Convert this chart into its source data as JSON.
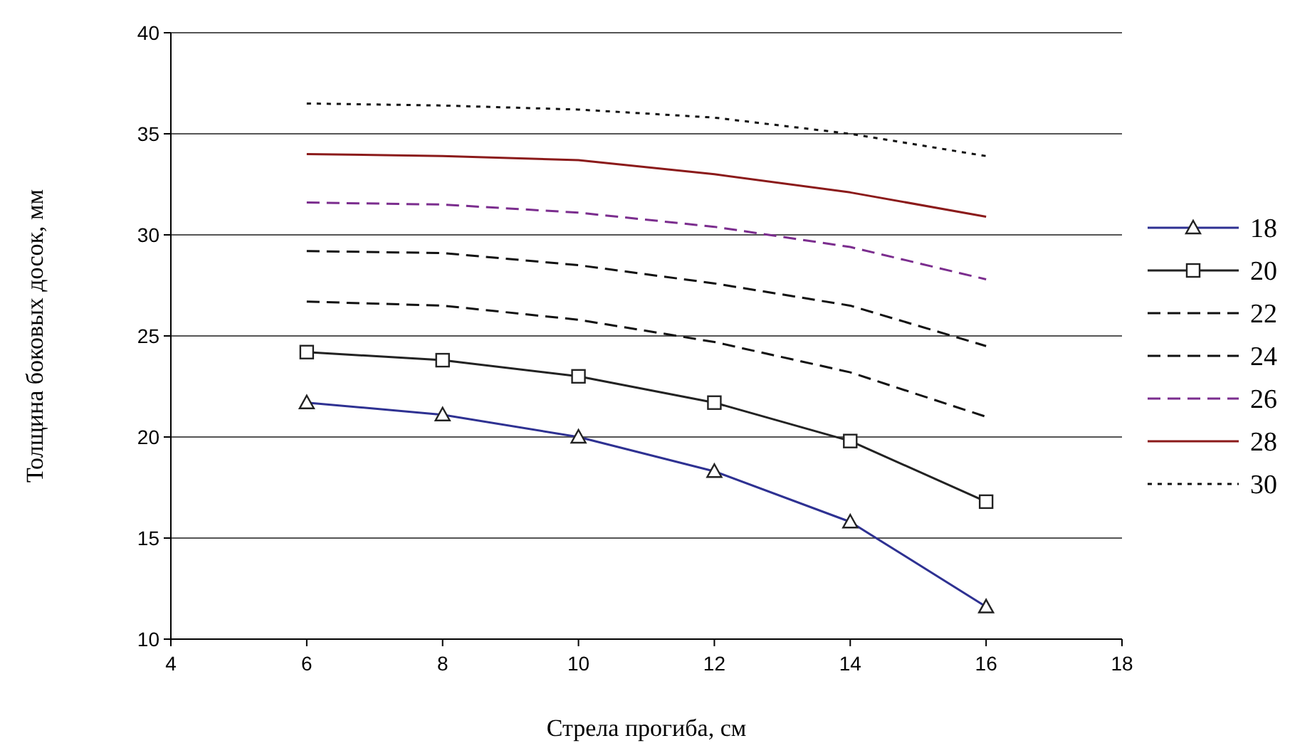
{
  "chart_data": {
    "type": "line",
    "xlabel": "Стрела прогиба, см",
    "ylabel": "Толщина боковых досок, мм",
    "x": [
      6,
      8,
      10,
      12,
      14,
      16
    ],
    "xlim": [
      4,
      18
    ],
    "xticks": [
      4,
      6,
      8,
      10,
      12,
      14,
      16,
      18
    ],
    "ylim": [
      10,
      40
    ],
    "yticks": [
      10,
      15,
      20,
      25,
      30,
      35,
      40
    ],
    "grid": "y",
    "legend": "right",
    "series": [
      {
        "name": "18",
        "color": "#2e3192",
        "marker": "triangle",
        "line_style": "solid",
        "values": [
          21.7,
          21.1,
          20.0,
          18.3,
          15.8,
          11.6
        ]
      },
      {
        "name": "20",
        "color": "#222222",
        "marker": "square",
        "line_style": "solid",
        "values": [
          24.2,
          23.8,
          23.0,
          21.7,
          19.8,
          16.8
        ]
      },
      {
        "name": "22",
        "color": "#111111",
        "marker": "none",
        "line_style": "dashed",
        "values": [
          26.7,
          26.5,
          25.8,
          24.7,
          23.2,
          21.0
        ]
      },
      {
        "name": "24",
        "color": "#111111",
        "marker": "none",
        "line_style": "dashed",
        "values": [
          29.2,
          29.1,
          28.5,
          27.6,
          26.5,
          24.5
        ]
      },
      {
        "name": "26",
        "color": "#7b2d8e",
        "marker": "none",
        "line_style": "dashed",
        "values": [
          31.6,
          31.5,
          31.1,
          30.4,
          29.4,
          27.8
        ]
      },
      {
        "name": "28",
        "color": "#8b1a1a",
        "marker": "none",
        "line_style": "solid",
        "values": [
          34.0,
          33.9,
          33.7,
          33.0,
          32.1,
          30.9
        ]
      },
      {
        "name": "30",
        "color": "#111111",
        "marker": "none",
        "line_style": "dotted",
        "values": [
          36.5,
          36.4,
          36.2,
          35.8,
          35.0,
          33.9
        ]
      }
    ]
  }
}
